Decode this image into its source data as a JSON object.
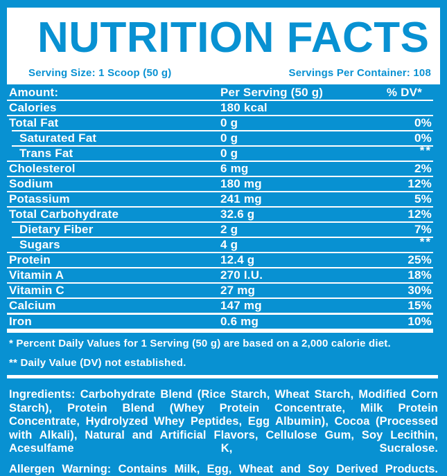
{
  "colors": {
    "brand_blue": "#0891D2",
    "text_white": "#FFFFFF"
  },
  "header": {
    "title": "NUTRITION FACTS",
    "serving_size": "Serving Size: 1  Scoop (50 g)",
    "servings_per_container": "Servings Per Container: 108"
  },
  "table": {
    "columns": {
      "amount": "Amount:",
      "per_serving": "Per Serving (50 g)",
      "dv": "% DV*"
    },
    "rows": [
      {
        "label": "Calories",
        "value": "180 kcal",
        "dv": "",
        "indent": false,
        "dv_super": false,
        "divider": "normal"
      },
      {
        "label": "Total Fat",
        "value": "0 g",
        "dv": "0%",
        "indent": false,
        "dv_super": false,
        "divider": "indent"
      },
      {
        "label": "Saturated Fat",
        "value": "0 g",
        "dv": "0%",
        "indent": true,
        "dv_super": false,
        "divider": "indent"
      },
      {
        "label": "Trans Fat",
        "value": "0 g",
        "dv": "**",
        "indent": true,
        "dv_super": true,
        "divider": "normal"
      },
      {
        "label": "Cholesterol",
        "value": "6 mg",
        "dv": "2%",
        "indent": false,
        "dv_super": false,
        "divider": "normal"
      },
      {
        "label": "Sodium",
        "value": "180 mg",
        "dv": "12%",
        "indent": false,
        "dv_super": false,
        "divider": "normal"
      },
      {
        "label": "Potassium",
        "value": "241 mg",
        "dv": "5%",
        "indent": false,
        "dv_super": false,
        "divider": "normal"
      },
      {
        "label": "Total Carbohydrate",
        "value": "32.6 g",
        "dv": "12%",
        "indent": false,
        "dv_super": false,
        "divider": "indent"
      },
      {
        "label": "Dietary Fiber",
        "value": "2 g",
        "dv": "7%",
        "indent": true,
        "dv_super": false,
        "divider": "indent"
      },
      {
        "label": "Sugars",
        "value": "4 g",
        "dv": "**",
        "indent": true,
        "dv_super": true,
        "divider": "normal"
      },
      {
        "label": "Protein",
        "value": "12.4 g",
        "dv": "25%",
        "indent": false,
        "dv_super": false,
        "divider": "normal"
      },
      {
        "label": "Vitamin A",
        "value": "270 I.U.",
        "dv": "18%",
        "indent": false,
        "dv_super": false,
        "divider": "normal"
      },
      {
        "label": "Vitamin C",
        "value": "27 mg",
        "dv": "30%",
        "indent": false,
        "dv_super": false,
        "divider": "normal"
      },
      {
        "label": "Calcium",
        "value": "147 mg",
        "dv": "15%",
        "indent": false,
        "dv_super": false,
        "divider": "thick"
      },
      {
        "label": "Iron",
        "value": "0.6 mg",
        "dv": "10%",
        "indent": false,
        "dv_super": false,
        "divider": "final"
      }
    ]
  },
  "footnotes": [
    "* Percent Daily Values for 1 Serving (50 g) are based on a 2,000 calorie diet.",
    "** Daily Value (DV) not established."
  ],
  "ingredients": "Ingredients: Carbohydrate Blend (Rice Starch, Wheat Starch, Modified Corn Starch), Protein Blend (Whey Protein Concentrate, Milk Protein Concentrate, Hydrolyzed Whey Peptides, Egg Albumin), Cocoa (Processed with Alkali), Natural and Artificial Flavors, Cellulose Gum, Soy Lecithin, Acesulfame K, Sucralose.",
  "allergen": "Allergen Warning: Contains Milk, Egg, Wheat and Soy Derived Products."
}
